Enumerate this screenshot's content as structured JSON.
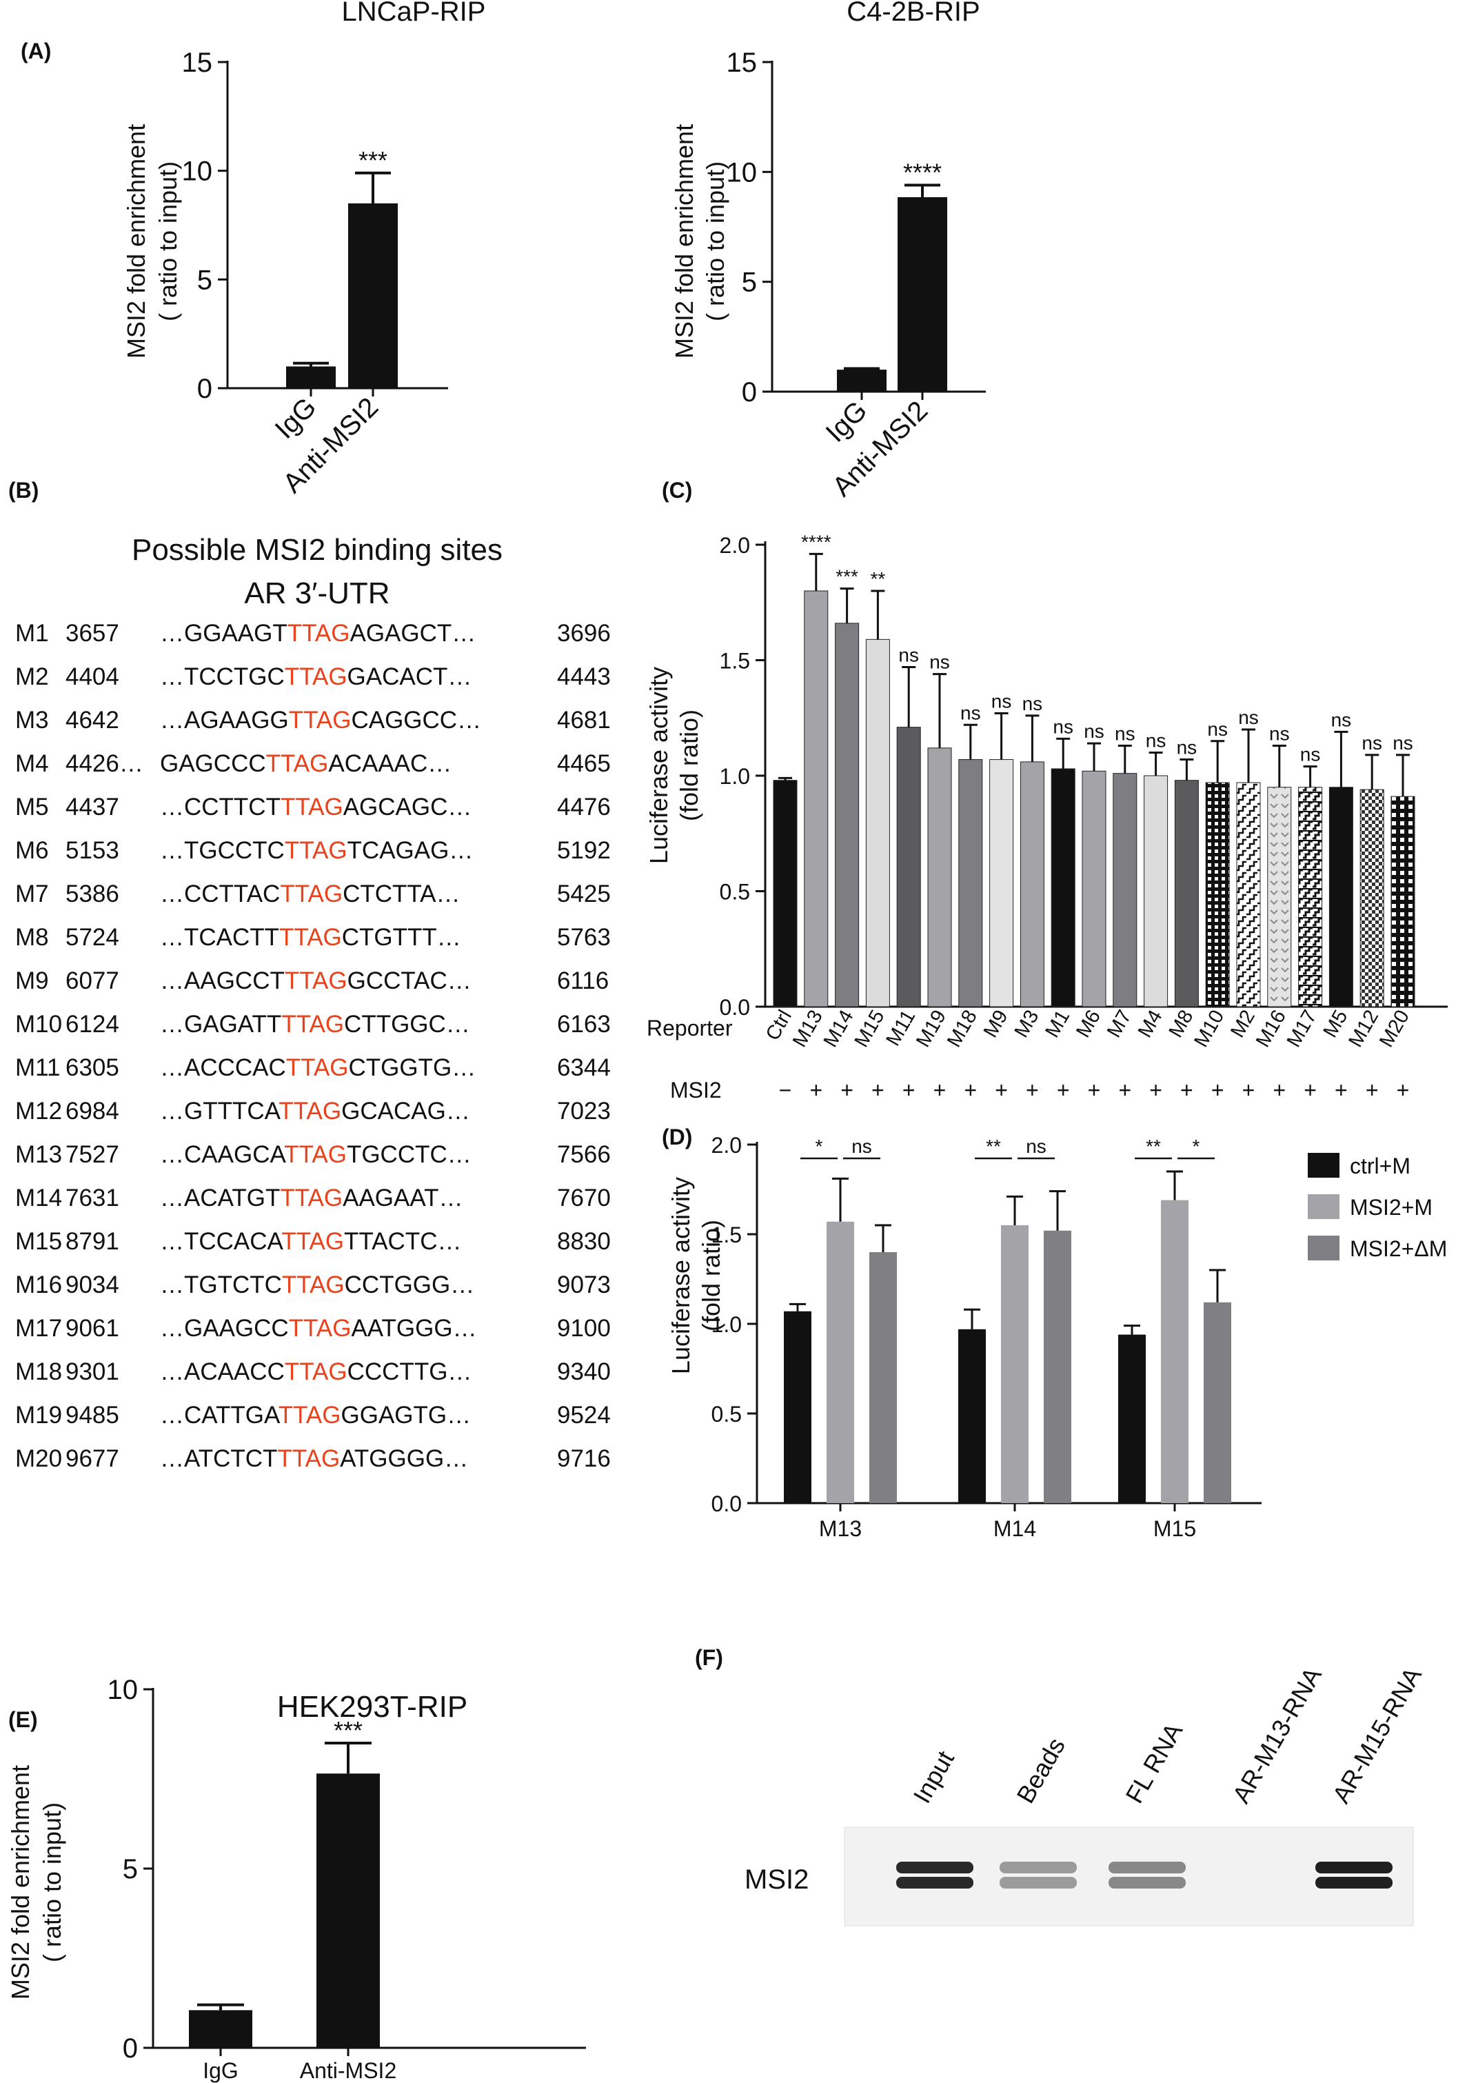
{
  "panels": {
    "A": {
      "letter": "(A)",
      "left": {
        "title": "LNCaP-RIP",
        "ylabel_line1": "MSI2 fold enrichment",
        "ylabel_line2": "( ratio to input)"
      },
      "right": {
        "title": "C4-2B-RIP",
        "ylabel_line1": "MSI2 fold enrichment",
        "ylabel_line2": "( ratio to input)"
      }
    },
    "B": {
      "letter": "(B)",
      "title_line1": "Possible MSI2 binding sites",
      "title_line2": "AR 3′-UTR",
      "motif": "TTAG",
      "sites": [
        {
          "id": "M1",
          "start": "3657",
          "prefix": "…GGAAGT",
          "suffix": "AGAGCT…",
          "end": "3696"
        },
        {
          "id": "M2",
          "start": "4404",
          "prefix": "…TCCTGC",
          "suffix": "GACACT…",
          "end": "4443"
        },
        {
          "id": "M3",
          "start": "4642",
          "prefix": "…AGAAGG",
          "suffix": "CAGGCC…",
          "end": "4681"
        },
        {
          "id": "M4",
          "start": "4426…",
          "prefix": "GAGCCC",
          "suffix": "ACAAAC…",
          "end": "4465"
        },
        {
          "id": "M5",
          "start": "4437",
          "prefix": "…CCTTCT",
          "suffix": "AGCAGC…",
          "end": "4476"
        },
        {
          "id": "M6",
          "start": "5153",
          "prefix": "…TGCCTC",
          "suffix": "TCAGAG…",
          "end": "5192"
        },
        {
          "id": "M7",
          "start": "5386",
          "prefix": "…CCTTAC",
          "suffix": "CTCTTA…",
          "end": "5425"
        },
        {
          "id": "M8",
          "start": "5724",
          "prefix": "…TCACTT",
          "suffix": "CTGTTT…",
          "end": "5763"
        },
        {
          "id": "M9",
          "start": "6077",
          "prefix": "…AAGCCT",
          "suffix": "GCCTAC…",
          "end": "6116"
        },
        {
          "id": "M10",
          "start": "6124",
          "prefix": "…GAGATT",
          "suffix": "CTTGGC…",
          "end": "6163"
        },
        {
          "id": "M11",
          "start": "6305",
          "prefix": "…ACCCAC",
          "suffix": "CTGGTG…",
          "end": "6344"
        },
        {
          "id": "M12",
          "start": "6984",
          "prefix": "…GTTTCA",
          "suffix": "GCACAG…",
          "end": "7023"
        },
        {
          "id": "M13",
          "start": "7527",
          "prefix": "…CAAGCA",
          "suffix": "TGCCTC…",
          "end": "7566"
        },
        {
          "id": "M14",
          "start": "7631",
          "prefix": "…ACATGT",
          "suffix": "AAGAAT…",
          "end": "7670"
        },
        {
          "id": "M15",
          "start": "8791",
          "prefix": "…TCCACA",
          "suffix": "TTACTC…",
          "end": "8830"
        },
        {
          "id": "M16",
          "start": "9034",
          "prefix": "…TGTCTC",
          "suffix": "CCTGGG…",
          "end": "9073"
        },
        {
          "id": "M17",
          "start": "9061",
          "prefix": "…GAAGCC",
          "suffix": "AATGGG…",
          "end": "9100"
        },
        {
          "id": "M18",
          "start": "9301",
          "prefix": "…ACAACC",
          "suffix": "CCCTTG…",
          "end": "9340"
        },
        {
          "id": "M19",
          "start": "9485",
          "prefix": "…CATTGA",
          "suffix": "GGAGTG…",
          "end": "9524"
        },
        {
          "id": "M20",
          "start": "9677",
          "prefix": "…ATCTCT",
          "suffix": "ATGGGG…",
          "end": "9716"
        }
      ]
    },
    "C": {
      "letter": "(C)",
      "ylabel_line1": "Luciferase activity",
      "ylabel_line2": "(fold ratio)",
      "reporter_label": "Reporter",
      "msi2_label": "MSI2"
    },
    "D": {
      "letter": "(D)",
      "ylabel_line1": "Luciferase activity",
      "ylabel_line2": "(fold ratio)"
    },
    "E": {
      "letter": "(E)",
      "title": "HEK293T-RIP",
      "ylabel_line1": "MSI2 fold enrichment",
      "ylabel_line2": "( ratio to input)"
    },
    "F": {
      "letter": "(F)",
      "lane_labels": [
        "Input",
        "Beads",
        "FL RNA",
        "AR-M13-RNA",
        "AR-M15-RNA"
      ],
      "row_label": "MSI2",
      "band_intensity": [
        0.95,
        0.35,
        0.45,
        0.0,
        1.0
      ]
    }
  },
  "chart_data": [
    {
      "panel": "A-left",
      "type": "bar",
      "title": "LNCaP-RIP",
      "categories": [
        "IgG",
        "Anti-MSI2"
      ],
      "values": [
        1.0,
        8.5
      ],
      "errors": [
        0.15,
        1.4
      ],
      "significance": [
        "",
        "***"
      ],
      "ylabel": "MSI2 fold enrichment ( ratio to input)",
      "ylim": [
        0,
        15
      ],
      "yticks": [
        0,
        5,
        10,
        15
      ],
      "bar_color": "#111111"
    },
    {
      "panel": "A-right",
      "type": "bar",
      "title": "C4-2B-RIP",
      "categories": [
        "IgG",
        "Anti-MSI2"
      ],
      "values": [
        1.0,
        8.85
      ],
      "errors": [
        0.05,
        0.55
      ],
      "significance": [
        "",
        "****"
      ],
      "ylabel": "MSI2 fold enrichment ( ratio to input)",
      "ylim": [
        0,
        15
      ],
      "yticks": [
        0,
        5,
        10,
        15
      ],
      "bar_color": "#111111"
    },
    {
      "panel": "C",
      "type": "bar",
      "categories": [
        "Ctrl",
        "M13",
        "M14",
        "M15",
        "M11",
        "M19",
        "M18",
        "M9",
        "M3",
        "M1",
        "M6",
        "M7",
        "M4",
        "M8",
        "M10",
        "M2",
        "M16",
        "M17",
        "M5",
        "M12",
        "M20"
      ],
      "values": [
        0.98,
        1.8,
        1.66,
        1.59,
        1.21,
        1.12,
        1.07,
        1.07,
        1.06,
        1.03,
        1.02,
        1.01,
        1.0,
        0.98,
        0.97,
        0.97,
        0.95,
        0.95,
        0.95,
        0.94,
        0.91
      ],
      "errors": [
        0.01,
        0.16,
        0.15,
        0.21,
        0.26,
        0.32,
        0.15,
        0.2,
        0.2,
        0.13,
        0.12,
        0.12,
        0.1,
        0.09,
        0.18,
        0.23,
        0.18,
        0.09,
        0.24,
        0.15,
        0.18
      ],
      "significance": [
        "",
        "****",
        "***",
        "**",
        "ns",
        "ns",
        "ns",
        "ns",
        "ns",
        "ns",
        "ns",
        "ns",
        "ns",
        "ns",
        "ns",
        "ns",
        "ns",
        "ns",
        "ns",
        "ns",
        "ns"
      ],
      "msi2": [
        "−",
        "+",
        "+",
        "+",
        "+",
        "+",
        "+",
        "+",
        "+",
        "+",
        "+",
        "+",
        "+",
        "+",
        "+",
        "+",
        "+",
        "+",
        "+",
        "+",
        "+"
      ],
      "fills": [
        "#111111",
        "#a3a3a8",
        "#7e7e82",
        "#dcdcdc",
        "#5b5b5e",
        "#a3a3a8",
        "#7e7e82",
        "#e3e3e3",
        "#a3a3a8",
        "#111111",
        "#a3a3a8",
        "#7e7e82",
        "#dcdcdc",
        "#5b5b5e",
        "pattern-dots",
        "pattern-stairs",
        "pattern-chevron",
        "pattern-stairs2",
        "#111111",
        "pattern-check",
        "pattern-grid"
      ],
      "ylabel": "Luciferase activity (fold ratio)",
      "ylim": [
        0,
        2.0
      ],
      "yticks": [
        0.0,
        0.5,
        1.0,
        1.5,
        2.0
      ]
    },
    {
      "panel": "D",
      "type": "bar",
      "categories": [
        "M13",
        "M14",
        "M15"
      ],
      "series": [
        {
          "name": "ctrl+M",
          "values": [
            1.07,
            0.97,
            0.94
          ],
          "errors": [
            0.04,
            0.11,
            0.05
          ],
          "color": "#111111"
        },
        {
          "name": "MSI2+M",
          "values": [
            1.57,
            1.55,
            1.69
          ],
          "errors": [
            0.24,
            0.16,
            0.16
          ],
          "color": "#a3a3a8"
        },
        {
          "name": "MSI2+ΔM",
          "values": [
            1.4,
            1.52,
            1.12
          ],
          "errors": [
            0.15,
            0.22,
            0.18
          ],
          "color": "#808084"
        }
      ],
      "significance": [
        {
          "group": "M13",
          "pairs": [
            "*",
            "ns"
          ]
        },
        {
          "group": "M14",
          "pairs": [
            "**",
            "ns"
          ]
        },
        {
          "group": "M15",
          "pairs": [
            "**",
            "*"
          ]
        }
      ],
      "ylabel": "Luciferase activity (fold ratio)",
      "ylim": [
        0,
        2.0
      ],
      "yticks": [
        0.0,
        0.5,
        1.0,
        1.5,
        2.0
      ],
      "legend": "right"
    },
    {
      "panel": "E",
      "type": "bar",
      "title": "HEK293T-RIP",
      "categories": [
        "IgG",
        "Anti-MSI2"
      ],
      "values": [
        1.05,
        7.65
      ],
      "errors": [
        0.15,
        0.85
      ],
      "significance": [
        "",
        "***"
      ],
      "ylabel": "MSI2 fold enrichment ( ratio to input)",
      "ylim": [
        0,
        10
      ],
      "yticks": [
        0,
        5,
        10
      ],
      "bar_color": "#111111"
    }
  ]
}
